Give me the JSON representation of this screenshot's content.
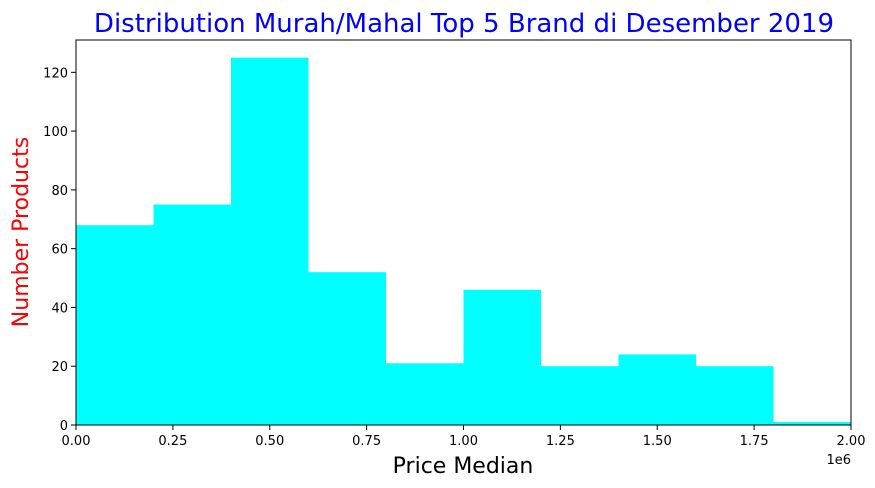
{
  "chart_data": {
    "type": "bar",
    "title": "Distribution Murah/Mahal Top 5 Brand di Desember 2019",
    "xlabel": "Price Median",
    "ylabel": "Number Products",
    "x_offset_text": "1e6",
    "bin_edges": [
      0,
      0.2,
      0.4,
      0.6,
      0.8,
      1.0,
      1.2,
      1.4,
      1.6,
      1.8,
      2.0
    ],
    "values": [
      68,
      75,
      125,
      52,
      21,
      46,
      20,
      24,
      20,
      1
    ],
    "xlim": [
      0,
      2.0
    ],
    "ylim": [
      0,
      131
    ],
    "xticks": [
      "0.00",
      "0.25",
      "0.50",
      "0.75",
      "1.00",
      "1.25",
      "1.50",
      "1.75",
      "2.00"
    ],
    "yticks": [
      "0",
      "20",
      "40",
      "60",
      "80",
      "100",
      "120"
    ],
    "grid": false,
    "colors": {
      "bar": "#00ffff",
      "title": "#0000ff",
      "ylabel": "#ff0000",
      "xlabel": "#000000"
    }
  }
}
